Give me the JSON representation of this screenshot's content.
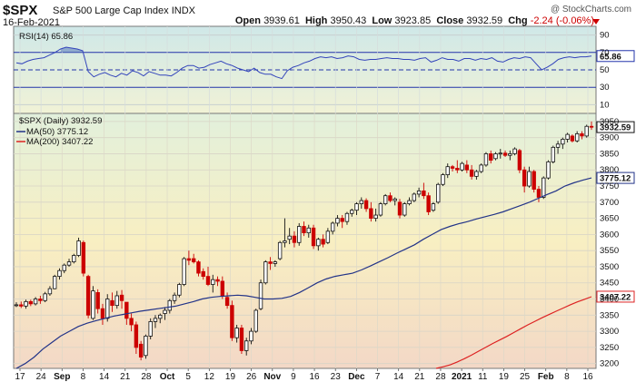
{
  "header": {
    "symbol": "$SPX",
    "name": "S&P 500 Large Cap Index",
    "exchange": "INDX",
    "date": "16-Feb-2021",
    "watermark": "@ StockCharts.com",
    "open_label": "Open",
    "open": "3939.61",
    "high_label": "High",
    "high": "3950.43",
    "low_label": "Low",
    "low": "3923.85",
    "close_label": "Close",
    "close": "3932.59",
    "chg_label": "Chg",
    "chg": "-2.24 (-0.06%)"
  },
  "rsi_panel": {
    "legend": "RSI(14) 65.86",
    "value_tag": "65.86",
    "ticks": [
      90,
      70,
      50,
      30,
      10
    ],
    "ylim": [
      0,
      100
    ],
    "color": "#3344bb"
  },
  "price_panel": {
    "legend_price": "$SPX (Daily) 3932.59",
    "legend_ma50": "MA(50) 3775.12",
    "legend_ma200": "MA(200) 3407.22",
    "tag_close": "3932.59",
    "tag_ma50": "3775.12",
    "tag_ma200": "3407.22",
    "yticks": [
      3950,
      3900,
      3850,
      3800,
      3750,
      3700,
      3650,
      3600,
      3550,
      3500,
      3450,
      3400,
      3350,
      3300,
      3250,
      3200
    ],
    "ylim": [
      3185,
      3975
    ],
    "ma50_color": "#223388",
    "ma200_color": "#dd2222",
    "up_color": "#111111",
    "down_color": "#cc0000"
  },
  "x_labels": [
    "17",
    "24",
    "Sep",
    "8",
    "14",
    "21",
    "28",
    "Oct",
    "5",
    "12",
    "19",
    "26",
    "Nov",
    "9",
    "16",
    "23",
    "Dec",
    "7",
    "14",
    "21",
    "28",
    "2021",
    "11",
    "19",
    "25",
    "Feb",
    "8",
    "16"
  ],
  "chart_data": [
    {
      "type": "line",
      "name": "RSI(14)",
      "ylim": [
        0,
        100
      ],
      "last": 65.86,
      "values": [
        58,
        57,
        60,
        62,
        63,
        64,
        67,
        70,
        74,
        76,
        75,
        74,
        72,
        48,
        42,
        45,
        47,
        44,
        42,
        46,
        44,
        49,
        47,
        43,
        48,
        46,
        44,
        44,
        43,
        47,
        52,
        55,
        55,
        52,
        53,
        56,
        58,
        60,
        57,
        55,
        52,
        50,
        48,
        52,
        47,
        45,
        45,
        42,
        40,
        49,
        53,
        55,
        58,
        60,
        63,
        65,
        64,
        65,
        63,
        64,
        66,
        65,
        62,
        61,
        62,
        62,
        63,
        64,
        63,
        63,
        62,
        62,
        61,
        63,
        64,
        59,
        61,
        64,
        62,
        62,
        60,
        63,
        63,
        61,
        63,
        62,
        64,
        60,
        59,
        62,
        64,
        63,
        65,
        64,
        57,
        50,
        53,
        57,
        62,
        64,
        65,
        64,
        65,
        65,
        65.86
      ]
    },
    {
      "type": "candlestick",
      "name": "$SPX (Daily)",
      "ylim": [
        3185,
        3975
      ],
      "close_last": 3932.59,
      "ohlc": [
        [
          3380,
          3390,
          3375,
          3382
        ],
        [
          3382,
          3392,
          3372,
          3378
        ],
        [
          3378,
          3398,
          3370,
          3392
        ],
        [
          3392,
          3398,
          3378,
          3385
        ],
        [
          3385,
          3406,
          3380,
          3400
        ],
        [
          3400,
          3410,
          3385,
          3395
        ],
        [
          3395,
          3422,
          3390,
          3416
        ],
        [
          3416,
          3440,
          3410,
          3432
        ],
        [
          3432,
          3475,
          3430,
          3470
        ],
        [
          3470,
          3495,
          3460,
          3488
        ],
        [
          3488,
          3510,
          3480,
          3505
        ],
        [
          3505,
          3525,
          3500,
          3515
        ],
        [
          3515,
          3540,
          3510,
          3535
        ],
        [
          3535,
          3590,
          3530,
          3580
        ],
        [
          3575,
          3581,
          3470,
          3480
        ],
        [
          3470,
          3475,
          3340,
          3350
        ],
        [
          3340,
          3440,
          3335,
          3425
        ],
        [
          3420,
          3430,
          3355,
          3370
        ],
        [
          3370,
          3385,
          3320,
          3340
        ],
        [
          3340,
          3415,
          3330,
          3400
        ],
        [
          3395,
          3420,
          3360,
          3380
        ],
        [
          3380,
          3425,
          3370,
          3410
        ],
        [
          3412,
          3428,
          3370,
          3395
        ],
        [
          3390,
          3390,
          3320,
          3340
        ],
        [
          3340,
          3355,
          3300,
          3320
        ],
        [
          3320,
          3330,
          3230,
          3250
        ],
        [
          3260,
          3270,
          3210,
          3220
        ],
        [
          3225,
          3290,
          3215,
          3285
        ],
        [
          3285,
          3340,
          3275,
          3330
        ],
        [
          3330,
          3350,
          3310,
          3340
        ],
        [
          3340,
          3355,
          3325,
          3350
        ],
        [
          3355,
          3375,
          3335,
          3365
        ],
        [
          3365,
          3400,
          3355,
          3395
        ],
        [
          3395,
          3420,
          3385,
          3412
        ],
        [
          3412,
          3450,
          3405,
          3445
        ],
        [
          3445,
          3530,
          3440,
          3525
        ],
        [
          3525,
          3550,
          3505,
          3520
        ],
        [
          3525,
          3540,
          3510,
          3515
        ],
        [
          3515,
          3520,
          3470,
          3480
        ],
        [
          3485,
          3495,
          3460,
          3470
        ],
        [
          3470,
          3500,
          3440,
          3445
        ],
        [
          3445,
          3475,
          3420,
          3460
        ],
        [
          3460,
          3470,
          3440,
          3455
        ],
        [
          3455,
          3470,
          3400,
          3410
        ],
        [
          3405,
          3420,
          3370,
          3380
        ],
        [
          3380,
          3395,
          3270,
          3280
        ],
        [
          3280,
          3320,
          3265,
          3310
        ],
        [
          3310,
          3320,
          3230,
          3240
        ],
        [
          3240,
          3280,
          3225,
          3270
        ],
        [
          3270,
          3310,
          3260,
          3300
        ],
        [
          3300,
          3370,
          3295,
          3365
        ],
        [
          3370,
          3460,
          3365,
          3450
        ],
        [
          3450,
          3520,
          3445,
          3515
        ],
        [
          3515,
          3530,
          3490,
          3510
        ],
        [
          3510,
          3520,
          3500,
          3515
        ],
        [
          3525,
          3580,
          3520,
          3575
        ],
        [
          3575,
          3650,
          3560,
          3580
        ],
        [
          3585,
          3620,
          3570,
          3595
        ],
        [
          3595,
          3610,
          3560,
          3575
        ],
        [
          3575,
          3635,
          3565,
          3625
        ],
        [
          3625,
          3640,
          3595,
          3605
        ],
        [
          3605,
          3630,
          3590,
          3620
        ],
        [
          3620,
          3630,
          3555,
          3565
        ],
        [
          3565,
          3590,
          3550,
          3585
        ],
        [
          3585,
          3600,
          3560,
          3570
        ],
        [
          3575,
          3620,
          3570,
          3610
        ],
        [
          3610,
          3640,
          3600,
          3635
        ],
        [
          3635,
          3660,
          3625,
          3650
        ],
        [
          3650,
          3660,
          3620,
          3640
        ],
        [
          3640,
          3670,
          3630,
          3665
        ],
        [
          3665,
          3680,
          3655,
          3675
        ],
        [
          3675,
          3700,
          3660,
          3695
        ],
        [
          3695,
          3715,
          3680,
          3705
        ],
        [
          3705,
          3712,
          3670,
          3680
        ],
        [
          3680,
          3700,
          3640,
          3650
        ],
        [
          3650,
          3680,
          3640,
          3660
        ],
        [
          3660,
          3700,
          3655,
          3695
        ],
        [
          3695,
          3725,
          3690,
          3720
        ],
        [
          3720,
          3730,
          3700,
          3705
        ],
        [
          3705,
          3715,
          3690,
          3710
        ],
        [
          3700,
          3710,
          3650,
          3660
        ],
        [
          3660,
          3700,
          3655,
          3695
        ],
        [
          3695,
          3715,
          3690,
          3705
        ],
        [
          3705,
          3730,
          3700,
          3725
        ],
        [
          3725,
          3745,
          3715,
          3735
        ],
        [
          3735,
          3760,
          3710,
          3720
        ],
        [
          3720,
          3730,
          3660,
          3670
        ],
        [
          3675,
          3700,
          3670,
          3695
        ],
        [
          3700,
          3760,
          3695,
          3755
        ],
        [
          3755,
          3790,
          3750,
          3785
        ],
        [
          3785,
          3820,
          3775,
          3810
        ],
        [
          3810,
          3815,
          3795,
          3805
        ],
        [
          3805,
          3830,
          3790,
          3800
        ],
        [
          3800,
          3825,
          3795,
          3820
        ],
        [
          3815,
          3830,
          3790,
          3800
        ],
        [
          3800,
          3815,
          3770,
          3780
        ],
        [
          3780,
          3800,
          3770,
          3795
        ],
        [
          3795,
          3820,
          3790,
          3815
        ],
        [
          3815,
          3855,
          3810,
          3850
        ],
        [
          3850,
          3860,
          3820,
          3830
        ],
        [
          3835,
          3855,
          3830,
          3850
        ],
        [
          3850,
          3865,
          3835,
          3852
        ],
        [
          3852,
          3860,
          3840,
          3845
        ],
        [
          3845,
          3860,
          3830,
          3850
        ],
        [
          3850,
          3870,
          3845,
          3865
        ],
        [
          3860,
          3865,
          3790,
          3800
        ],
        [
          3800,
          3810,
          3730,
          3750
        ],
        [
          3750,
          3810,
          3745,
          3795
        ],
        [
          3795,
          3800,
          3730,
          3740
        ],
        [
          3740,
          3750,
          3700,
          3715
        ],
        [
          3715,
          3780,
          3710,
          3775
        ],
        [
          3775,
          3830,
          3770,
          3825
        ],
        [
          3825,
          3875,
          3820,
          3870
        ],
        [
          3870,
          3890,
          3850,
          3880
        ],
        [
          3880,
          3900,
          3865,
          3895
        ],
        [
          3895,
          3915,
          3885,
          3910
        ],
        [
          3905,
          3910,
          3885,
          3890
        ],
        [
          3890,
          3920,
          3885,
          3912
        ],
        [
          3912,
          3920,
          3895,
          3905
        ],
        [
          3905,
          3940,
          3900,
          3935
        ],
        [
          3935,
          3950,
          3924,
          3933
        ]
      ]
    },
    {
      "type": "line",
      "name": "MA(50)",
      "last": 3775.12,
      "values": [
        3185,
        3200,
        3220,
        3245,
        3265,
        3285,
        3300,
        3315,
        3325,
        3333,
        3340,
        3347,
        3352,
        3357,
        3362,
        3366,
        3370,
        3374,
        3378,
        3385,
        3392,
        3400,
        3405,
        3408,
        3410,
        3412,
        3410,
        3405,
        3400,
        3400,
        3402,
        3408,
        3420,
        3435,
        3450,
        3462,
        3470,
        3475,
        3480,
        3490,
        3502,
        3515,
        3528,
        3542,
        3555,
        3568,
        3585,
        3600,
        3615,
        3625,
        3633,
        3640,
        3648,
        3655,
        3662,
        3670,
        3680,
        3690,
        3700,
        3712,
        3724,
        3735,
        3750,
        3760,
        3768,
        3775.12
      ]
    },
    {
      "type": "line",
      "name": "MA(200)",
      "last": 3407.22,
      "values": [
        3185,
        3190,
        3196,
        3205,
        3215,
        3226,
        3238,
        3250,
        3262,
        3273,
        3284,
        3296,
        3308,
        3320,
        3331,
        3342,
        3352,
        3362,
        3372,
        3382,
        3391,
        3399,
        3407.22
      ]
    }
  ]
}
